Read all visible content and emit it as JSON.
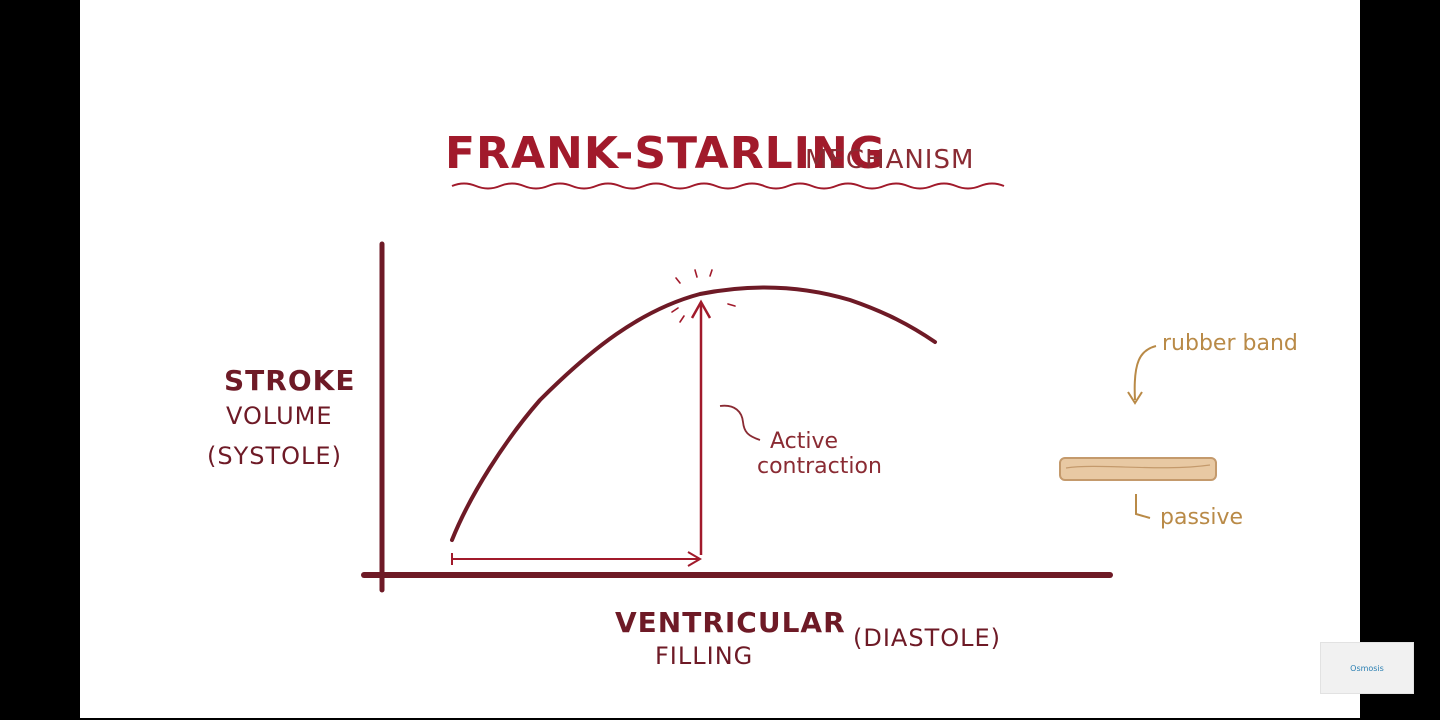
{
  "diagram": {
    "title_main": "FRANK-STARLING",
    "title_sub": "MECHANISM",
    "y_label": {
      "line1": "STROKE",
      "line2": "VOLUME",
      "line3": "(SYSTOLE)"
    },
    "x_label": {
      "line1": "VENTRICULAR",
      "line2": "FILLING",
      "qualifier": "(DIASTOLE)"
    },
    "annotation": {
      "line1": "Active",
      "line2": "contraction"
    },
    "side_panel": {
      "top_label": "rubber band",
      "bottom_label": "passive"
    }
  },
  "watermark": {
    "text": "Osmosis"
  },
  "colors": {
    "ink_dark": "#6e1a26",
    "ink_red": "#a11a2b",
    "annotation": "#8a2b33",
    "rubber_text": "#b98a47",
    "rubber_fill": "#e8c9a3",
    "rubber_stroke": "#c49a6c"
  }
}
